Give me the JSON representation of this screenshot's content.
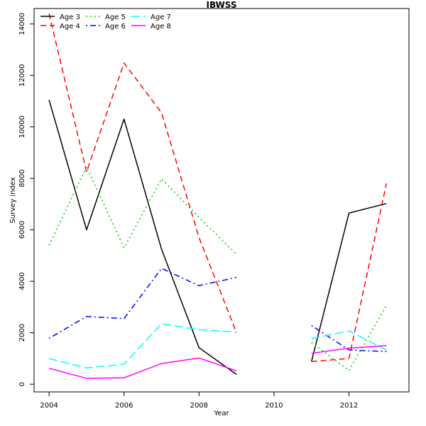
{
  "chart_data": {
    "type": "line",
    "title": "IBWSS",
    "xlabel": "Year",
    "ylabel": "Survey index",
    "xlim": [
      2003.6,
      2013.6
    ],
    "ylim": [
      -300,
      14600
    ],
    "x_ticks": [
      2004,
      2006,
      2008,
      2010,
      2012
    ],
    "y_ticks": [
      0,
      2000,
      4000,
      6000,
      8000,
      10000,
      12000,
      14000
    ],
    "grid": false,
    "legend_position": "top-left",
    "series": [
      {
        "name": "Age 3",
        "color": "#000000",
        "dash": "solid",
        "segments": [
          {
            "x": [
              2004,
              2005,
              2006,
              2007,
              2008,
              2009
            ],
            "y": [
              11050,
              6000,
              10300,
              5250,
              1420,
              380
            ]
          },
          {
            "x": [
              2011,
              2012,
              2013
            ],
            "y": [
              880,
              6650,
              7020
            ]
          }
        ]
      },
      {
        "name": "Age 4",
        "color": "#ff0000",
        "dash": "dashed",
        "segments": [
          {
            "x": [
              2004,
              2005,
              2006,
              2007,
              2008,
              2009
            ],
            "y": [
              14400,
              8250,
              12480,
              10550,
              5700,
              2000
            ]
          },
          {
            "x": [
              2011,
              2012,
              2013
            ],
            "y": [
              880,
              1000,
              7800
            ]
          }
        ]
      },
      {
        "name": "Age 5",
        "color": "#00cd00",
        "dash": "dotted",
        "segments": [
          {
            "x": [
              2004,
              2005,
              2006,
              2007,
              2008,
              2009
            ],
            "y": [
              5400,
              8450,
              5300,
              7980,
              6480,
              5050
            ]
          },
          {
            "x": [
              2011,
              2012,
              2013
            ],
            "y": [
              1620,
              530,
              3060
            ]
          }
        ]
      },
      {
        "name": "Age 6",
        "color": "#0000ff",
        "dash": "dotdash",
        "segments": [
          {
            "x": [
              2004,
              2005,
              2006,
              2007,
              2008,
              2009
            ],
            "y": [
              1780,
              2630,
              2550,
              4500,
              3830,
              4150
            ]
          },
          {
            "x": [
              2011,
              2012,
              2013
            ],
            "y": [
              2280,
              1330,
              1270
            ]
          }
        ]
      },
      {
        "name": "Age 7",
        "color": "#00ffff",
        "dash": "longdash",
        "segments": [
          {
            "x": [
              2004,
              2005,
              2006,
              2007,
              2008,
              2009
            ],
            "y": [
              1000,
              630,
              780,
              2350,
              2120,
              2030
            ]
          },
          {
            "x": [
              2011,
              2012,
              2013
            ],
            "y": [
              1770,
              2070,
              1330
            ]
          }
        ]
      },
      {
        "name": "Age 8",
        "color": "#ff00ff",
        "dash": "solid",
        "segments": [
          {
            "x": [
              2004,
              2005,
              2006,
              2007,
              2008,
              2009
            ],
            "y": [
              620,
              230,
              250,
              800,
              1020,
              520
            ]
          },
          {
            "x": [
              2011,
              2012,
              2013
            ],
            "y": [
              1200,
              1400,
              1500
            ]
          }
        ]
      }
    ]
  }
}
